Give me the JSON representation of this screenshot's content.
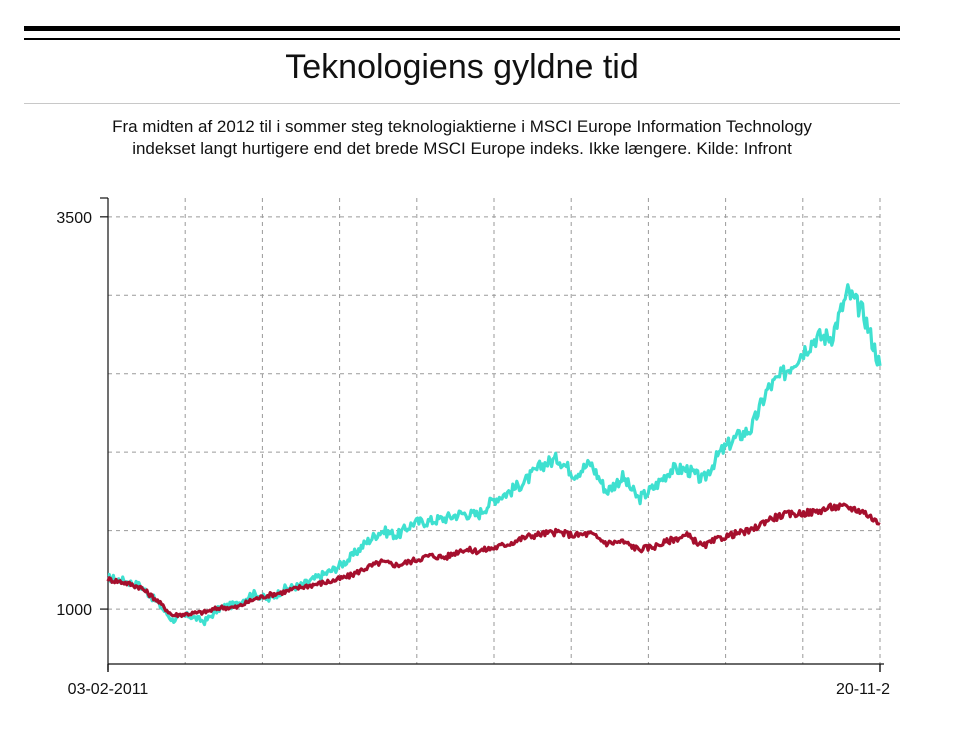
{
  "title": "Teknologiens gyldne tid",
  "subtitle_line1": "Fra midten af 2012 til i sommer steg teknologiaktierne i MSCI Europe Information Technology",
  "subtitle_line2": "indekset langt hurtigere end det brede MSCI Europe indeks. Ikke længere. Kilde: Infront",
  "chart_data": {
    "type": "line",
    "title": "Teknologiens gyldne tid",
    "x_tick_labels": [
      "03-02-2011",
      "20-11-2"
    ],
    "y_tick_labels": [
      "3500",
      "1000"
    ],
    "ylim": [
      650,
      3620
    ],
    "grid": true,
    "x": [
      "2011-02",
      "2011-05",
      "2011-08",
      "2011-11",
      "2012-02",
      "2012-05",
      "2012-08",
      "2012-11",
      "2013-02",
      "2013-05",
      "2013-08",
      "2013-11",
      "2014-02",
      "2014-05",
      "2014-08",
      "2014-11",
      "2015-02",
      "2015-05",
      "2015-08",
      "2015-11",
      "2016-02",
      "2016-05",
      "2016-08",
      "2016-11",
      "2017-02",
      "2017-05",
      "2017-08",
      "2017-11",
      "2018-02",
      "2018-05",
      "2018-08",
      "2018-11",
      "2019-02",
      "2019-05",
      "2019-08",
      "2019-11",
      "2020-02",
      "2020-03",
      "2020-05",
      "2020-08",
      "2020-11",
      "2021-02",
      "2021-05",
      "2021-08",
      "2021-11",
      "2022-02",
      "2022-05",
      "2022-08",
      "2022-11"
    ],
    "series": [
      {
        "color": "#3fe0d0",
        "values": [
          1200,
          1180,
          1150,
          1050,
          930,
          960,
          920,
          1010,
          1030,
          1100,
          1060,
          1130,
          1150,
          1200,
          1250,
          1320,
          1420,
          1500,
          1470,
          1550,
          1560,
          1580,
          1610,
          1600,
          1700,
          1750,
          1820,
          1920,
          1960,
          1860,
          1930,
          1750,
          1840,
          1700,
          1780,
          1890,
          1890,
          1820,
          1990,
          2090,
          2150,
          2400,
          2500,
          2620,
          2730,
          2740,
          3020,
          2880,
          2550
        ]
      },
      {
        "color": "#a50f2d",
        "values": [
          1190,
          1170,
          1140,
          1060,
          960,
          970,
          980,
          1010,
          1010,
          1060,
          1090,
          1110,
          1140,
          1160,
          1180,
          1210,
          1260,
          1300,
          1280,
          1310,
          1340,
          1330,
          1380,
          1370,
          1390,
          1420,
          1460,
          1480,
          1490,
          1470,
          1480,
          1420,
          1430,
          1380,
          1400,
          1440,
          1470,
          1400,
          1450,
          1480,
          1500,
          1570,
          1600,
          1610,
          1620,
          1650,
          1650,
          1620,
          1540
        ]
      }
    ]
  }
}
